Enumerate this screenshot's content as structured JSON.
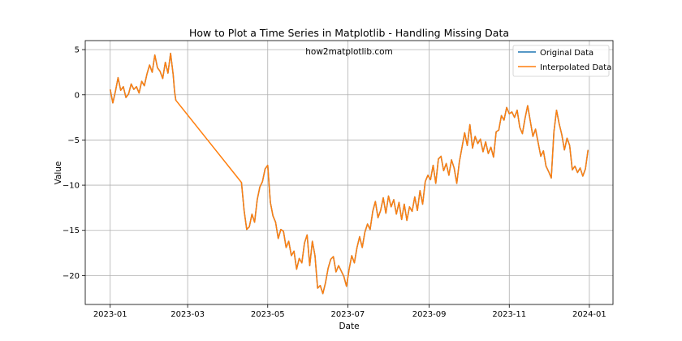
{
  "chart_data": {
    "type": "line",
    "title": "How to Plot a Time Series in Matplotlib - Handling Missing Data",
    "annotation": "how2matplotlib.com",
    "xlabel": "Date",
    "ylabel": "Value",
    "grid": true,
    "legend_position": "top-right",
    "xlim": [
      "2022-12-13",
      "2024-01-19"
    ],
    "ylim": [
      -23.2,
      6.0
    ],
    "x_ticks": [
      {
        "value": "2023-01-01",
        "label": "2023-01"
      },
      {
        "value": "2023-03-01",
        "label": "2023-03"
      },
      {
        "value": "2023-05-01",
        "label": "2023-05"
      },
      {
        "value": "2023-07-01",
        "label": "2023-07"
      },
      {
        "value": "2023-09-01",
        "label": "2023-09"
      },
      {
        "value": "2023-11-01",
        "label": "2023-11"
      },
      {
        "value": "2024-01-01",
        "label": "2024-01"
      }
    ],
    "y_ticks": [
      5,
      0,
      -5,
      -10,
      -15,
      -20
    ],
    "colors": {
      "original": "#1f77b4",
      "interpolated": "#ff7f0e",
      "grid": "#b0b0b0"
    },
    "series": [
      {
        "name": "Original Data",
        "color": "#1f77b4",
        "points": [
          [
            "2023-01-01",
            0.6
          ],
          [
            "2023-01-03",
            -0.9
          ],
          [
            "2023-01-05",
            0.4
          ],
          [
            "2023-01-07",
            1.9
          ],
          [
            "2023-01-09",
            0.5
          ],
          [
            "2023-01-11",
            0.9
          ],
          [
            "2023-01-13",
            -0.3
          ],
          [
            "2023-01-15",
            0.1
          ],
          [
            "2023-01-17",
            1.2
          ],
          [
            "2023-01-19",
            0.6
          ],
          [
            "2023-01-21",
            0.9
          ],
          [
            "2023-01-23",
            0.2
          ],
          [
            "2023-01-25",
            1.5
          ],
          [
            "2023-01-27",
            1.0
          ],
          [
            "2023-01-29",
            2.3
          ],
          [
            "2023-01-31",
            3.3
          ],
          [
            "2023-02-02",
            2.5
          ],
          [
            "2023-02-04",
            4.4
          ],
          [
            "2023-02-06",
            3.0
          ],
          [
            "2023-02-08",
            2.6
          ],
          [
            "2023-02-10",
            1.8
          ],
          [
            "2023-02-12",
            3.6
          ],
          [
            "2023-02-14",
            2.4
          ],
          [
            "2023-02-16",
            4.6
          ],
          [
            "2023-02-18",
            2.2
          ],
          [
            "2023-02-19",
            0.4
          ],
          [
            "2023-02-20",
            -0.6
          ],
          null,
          [
            "2023-04-11",
            -9.7
          ],
          [
            "2023-04-13",
            -12.8
          ],
          [
            "2023-04-15",
            -14.9
          ],
          [
            "2023-04-17",
            -14.6
          ],
          [
            "2023-04-19",
            -13.2
          ],
          [
            "2023-04-21",
            -14.1
          ],
          [
            "2023-04-23",
            -11.6
          ],
          [
            "2023-04-25",
            -10.2
          ],
          [
            "2023-04-27",
            -9.6
          ],
          [
            "2023-04-29",
            -8.2
          ],
          [
            "2023-05-01",
            -7.8
          ],
          [
            "2023-05-03",
            -11.9
          ],
          [
            "2023-05-05",
            -13.4
          ],
          [
            "2023-05-07",
            -14.1
          ],
          [
            "2023-05-09",
            -15.9
          ],
          [
            "2023-05-11",
            -14.9
          ],
          [
            "2023-05-13",
            -15.1
          ],
          [
            "2023-05-15",
            -16.9
          ],
          [
            "2023-05-17",
            -16.2
          ],
          [
            "2023-05-19",
            -17.8
          ],
          [
            "2023-05-21",
            -17.3
          ],
          [
            "2023-05-23",
            -19.3
          ],
          [
            "2023-05-25",
            -18.1
          ],
          [
            "2023-05-27",
            -18.6
          ],
          [
            "2023-05-29",
            -16.4
          ],
          [
            "2023-05-31",
            -15.5
          ],
          [
            "2023-06-02",
            -18.9
          ],
          [
            "2023-06-04",
            -16.2
          ],
          [
            "2023-06-06",
            -17.8
          ],
          [
            "2023-06-08",
            -21.4
          ],
          [
            "2023-06-10",
            -21.1
          ],
          [
            "2023-06-12",
            -22.0
          ],
          [
            "2023-06-14",
            -20.8
          ],
          [
            "2023-06-16",
            -19.2
          ],
          [
            "2023-06-18",
            -18.2
          ],
          [
            "2023-06-20",
            -17.9
          ],
          [
            "2023-06-22",
            -19.6
          ],
          [
            "2023-06-24",
            -18.9
          ],
          [
            "2023-06-26",
            -19.5
          ],
          [
            "2023-06-28",
            -20.1
          ],
          [
            "2023-06-30",
            -21.2
          ],
          [
            "2023-07-02",
            -19.3
          ],
          [
            "2023-07-04",
            -17.8
          ],
          [
            "2023-07-06",
            -18.6
          ],
          [
            "2023-07-08",
            -16.9
          ],
          [
            "2023-07-10",
            -15.7
          ],
          [
            "2023-07-12",
            -16.9
          ],
          [
            "2023-07-14",
            -15.2
          ],
          [
            "2023-07-16",
            -14.3
          ],
          [
            "2023-07-18",
            -14.9
          ],
          [
            "2023-07-20",
            -12.9
          ],
          [
            "2023-07-22",
            -11.8
          ],
          [
            "2023-07-24",
            -13.6
          ],
          [
            "2023-07-26",
            -12.8
          ],
          [
            "2023-07-28",
            -11.4
          ],
          [
            "2023-07-30",
            -13.1
          ],
          [
            "2023-08-01",
            -11.2
          ],
          [
            "2023-08-03",
            -12.4
          ],
          [
            "2023-08-05",
            -11.6
          ],
          [
            "2023-08-07",
            -13.2
          ],
          [
            "2023-08-09",
            -11.9
          ],
          [
            "2023-08-11",
            -13.8
          ],
          [
            "2023-08-13",
            -12.1
          ],
          [
            "2023-08-15",
            -13.9
          ],
          [
            "2023-08-17",
            -12.4
          ],
          [
            "2023-08-19",
            -12.9
          ],
          [
            "2023-08-21",
            -11.3
          ],
          [
            "2023-08-23",
            -12.8
          ],
          [
            "2023-08-25",
            -10.6
          ],
          [
            "2023-08-27",
            -12.1
          ],
          [
            "2023-08-29",
            -9.6
          ],
          [
            "2023-08-31",
            -8.9
          ],
          [
            "2023-09-02",
            -9.4
          ],
          [
            "2023-09-04",
            -7.8
          ],
          [
            "2023-09-06",
            -9.8
          ],
          [
            "2023-09-08",
            -7.1
          ],
          [
            "2023-09-10",
            -6.8
          ],
          [
            "2023-09-12",
            -8.4
          ],
          [
            "2023-09-14",
            -7.6
          ],
          [
            "2023-09-16",
            -8.9
          ],
          [
            "2023-09-18",
            -7.2
          ],
          [
            "2023-09-20",
            -8.1
          ],
          [
            "2023-09-22",
            -9.8
          ],
          [
            "2023-09-24",
            -7.4
          ],
          [
            "2023-09-26",
            -5.8
          ],
          [
            "2023-09-28",
            -4.2
          ],
          [
            "2023-09-30",
            -5.6
          ],
          [
            "2023-10-02",
            -3.3
          ],
          [
            "2023-10-04",
            -5.9
          ],
          [
            "2023-10-06",
            -4.6
          ],
          [
            "2023-10-08",
            -5.4
          ],
          [
            "2023-10-10",
            -4.9
          ],
          [
            "2023-10-12",
            -6.3
          ],
          [
            "2023-10-14",
            -5.2
          ],
          [
            "2023-10-16",
            -6.5
          ],
          [
            "2023-10-18",
            -5.8
          ],
          [
            "2023-10-20",
            -6.9
          ],
          [
            "2023-10-22",
            -4.1
          ],
          [
            "2023-10-24",
            -3.9
          ],
          [
            "2023-10-26",
            -2.3
          ],
          [
            "2023-10-28",
            -2.8
          ],
          [
            "2023-10-30",
            -1.4
          ],
          [
            "2023-11-01",
            -2.1
          ],
          [
            "2023-11-03",
            -1.9
          ],
          [
            "2023-11-05",
            -2.5
          ],
          [
            "2023-11-07",
            -1.7
          ],
          [
            "2023-11-09",
            -3.6
          ],
          [
            "2023-11-11",
            -4.3
          ],
          [
            "2023-11-13",
            -2.6
          ],
          [
            "2023-11-15",
            -1.2
          ],
          [
            "2023-11-17",
            -2.9
          ],
          [
            "2023-11-19",
            -4.6
          ],
          [
            "2023-11-21",
            -3.8
          ],
          [
            "2023-11-23",
            -5.3
          ],
          [
            "2023-11-25",
            -6.8
          ],
          [
            "2023-11-27",
            -6.2
          ],
          [
            "2023-11-29",
            -7.9
          ],
          [
            "2023-12-01",
            -8.5
          ],
          [
            "2023-12-03",
            -9.2
          ],
          [
            "2023-12-05",
            -4.1
          ],
          [
            "2023-12-07",
            -1.7
          ],
          [
            "2023-12-09",
            -3.2
          ],
          [
            "2023-12-11",
            -4.4
          ],
          [
            "2023-12-13",
            -6.1
          ],
          [
            "2023-12-15",
            -4.8
          ],
          [
            "2023-12-17",
            -5.6
          ],
          [
            "2023-12-19",
            -8.3
          ],
          [
            "2023-12-21",
            -7.9
          ],
          [
            "2023-12-23",
            -8.6
          ],
          [
            "2023-12-25",
            -8.1
          ],
          [
            "2023-12-27",
            -9.0
          ],
          [
            "2023-12-29",
            -8.2
          ],
          [
            "2023-12-31",
            -6.1
          ]
        ]
      },
      {
        "name": "Interpolated Data",
        "color": "#ff7f0e",
        "interpolated_gap": [
          [
            "2023-02-20",
            -0.6
          ],
          [
            "2023-04-11",
            -9.7
          ]
        ]
      }
    ]
  }
}
